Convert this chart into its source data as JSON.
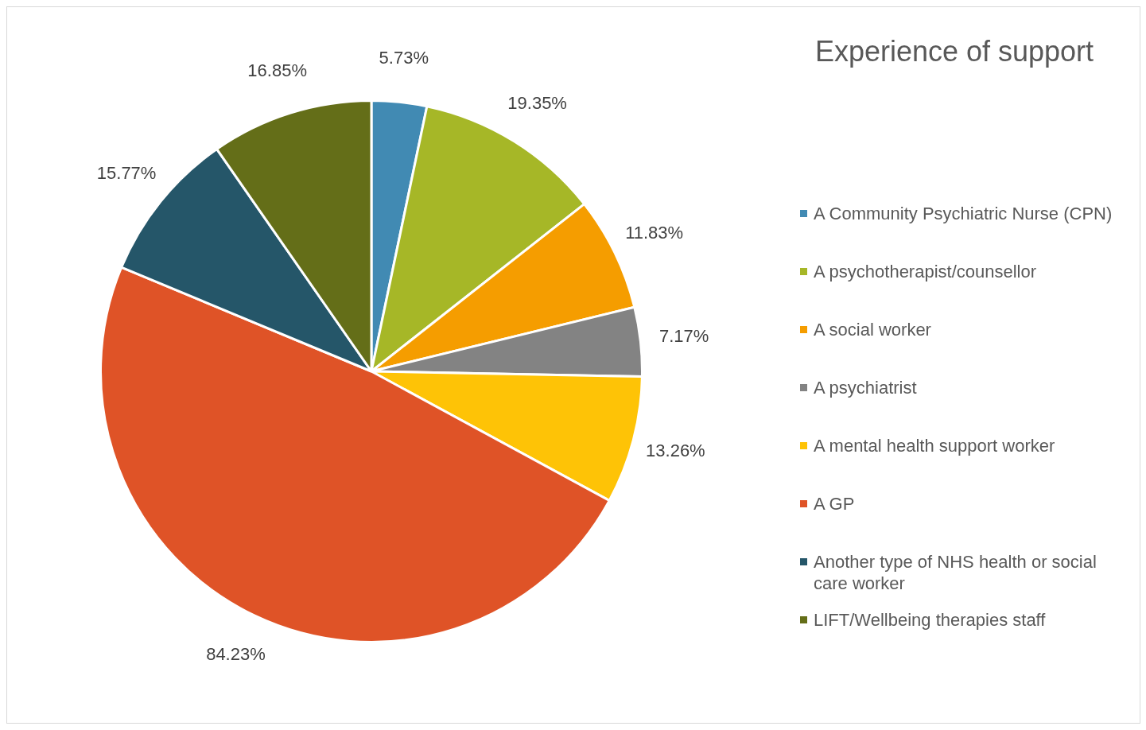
{
  "chart_data": {
    "type": "pie",
    "title": "Experience of support",
    "categories": [
      "A Community Psychiatric Nurse (CPN)",
      "A psychotherapist/counsellor",
      "A social worker",
      "A psychiatrist",
      "A mental health support worker",
      "A GP",
      "Another type of NHS health or social care worker",
      "LIFT/Wellbeing therapies staff"
    ],
    "values": [
      5.73,
      19.35,
      11.83,
      7.17,
      13.26,
      84.23,
      15.77,
      16.85
    ],
    "value_labels": [
      "5.73%",
      "19.35%",
      "11.83%",
      "7.17%",
      "13.26%",
      "84.23%",
      "15.77%",
      "16.85%"
    ],
    "colors": [
      "#418ab3",
      "#a6b727",
      "#f59d00",
      "#838383",
      "#fec306",
      "#df5327",
      "#255669",
      "#646e18"
    ],
    "legend": "right"
  }
}
